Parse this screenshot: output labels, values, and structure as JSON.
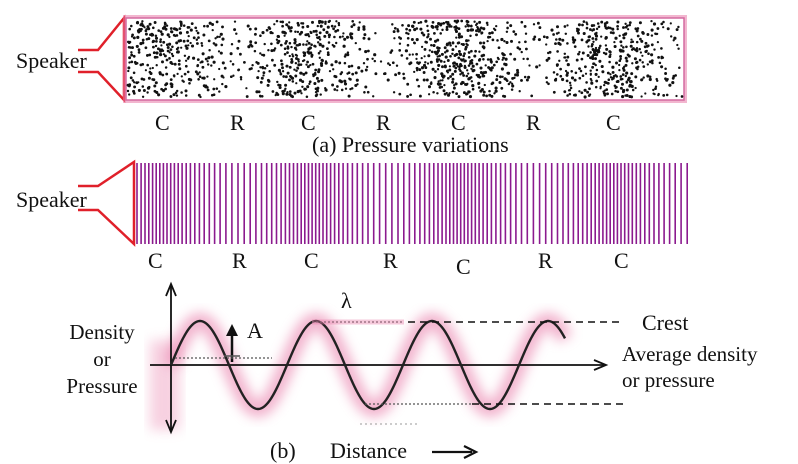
{
  "part_a": {
    "speaker_label": "Speaker",
    "cr_labels": [
      "C",
      "R",
      "C",
      "R",
      "C",
      "R",
      "C"
    ],
    "caption": "(a) Pressure variations"
  },
  "part_a2": {
    "speaker_label": "Speaker",
    "cr_labels": [
      "C",
      "R",
      "C",
      "R",
      "C",
      "R",
      "C"
    ]
  },
  "part_b": {
    "y_label_line1": "Density",
    "y_label_line2": "or",
    "y_label_line3": "Pressure",
    "amplitude_label": "A",
    "wavelength_label": "λ",
    "crest_label": "Crest",
    "average_label_line1": "Average density",
    "average_label_line2": "or pressure",
    "caption": "(b)",
    "x_label": "Distance"
  },
  "colors": {
    "speaker": "#e0202a",
    "lines": "#8b1a8e",
    "glow": "#e87aa8",
    "ink": "#111111"
  }
}
